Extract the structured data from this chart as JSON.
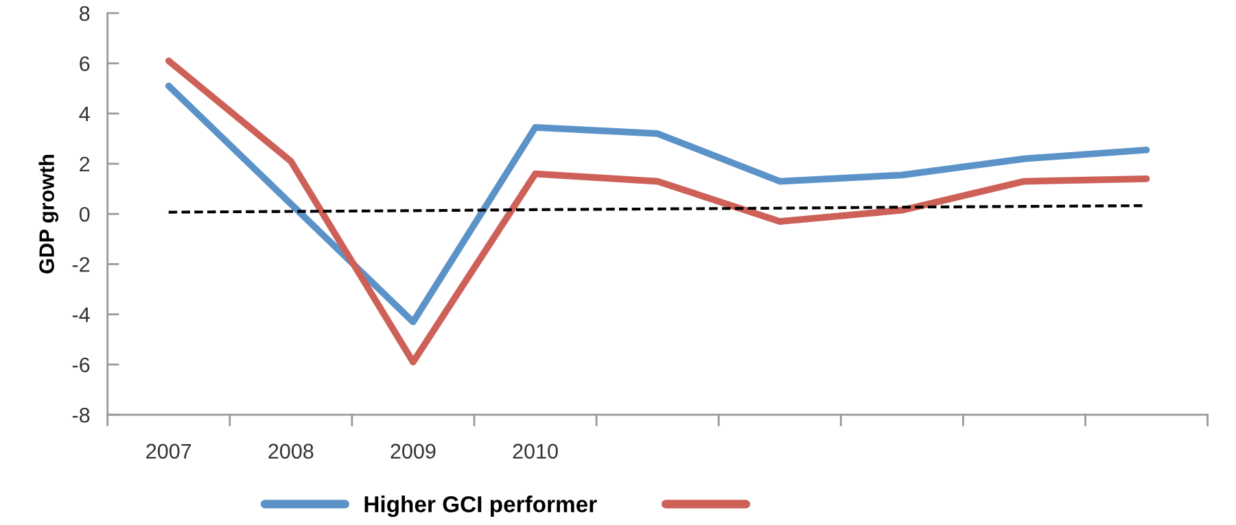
{
  "chart_data": {
    "type": "line",
    "ylabel": "GDP growth",
    "categories": [
      "2007",
      "2008",
      "2009",
      "2010",
      null,
      null,
      null,
      null,
      null
    ],
    "series": [
      {
        "name": "Higher GCI performer",
        "color": "#5b93c9",
        "values": [
          5.1,
          0.4,
          -4.3,
          3.45,
          3.2,
          1.3,
          1.55,
          2.2,
          2.55
        ]
      },
      {
        "color": "#cd6158",
        "values": [
          6.1,
          2.1,
          -5.9,
          1.6,
          1.3,
          -0.3,
          0.15,
          1.3,
          1.4
        ]
      },
      {
        "type": "line",
        "color": "#000000",
        "line_style": "dashed",
        "values": [
          0.07,
          0.1,
          0.13,
          0.17,
          0.2,
          0.23,
          0.27,
          0.3,
          0.33
        ]
      }
    ],
    "ylim": [
      -8,
      8
    ],
    "yticks": [
      -8,
      -6,
      -4,
      -2,
      0,
      2,
      4,
      6,
      8
    ],
    "grid": false,
    "legend": "bottom",
    "line_style": "solid",
    "marker": "none"
  }
}
